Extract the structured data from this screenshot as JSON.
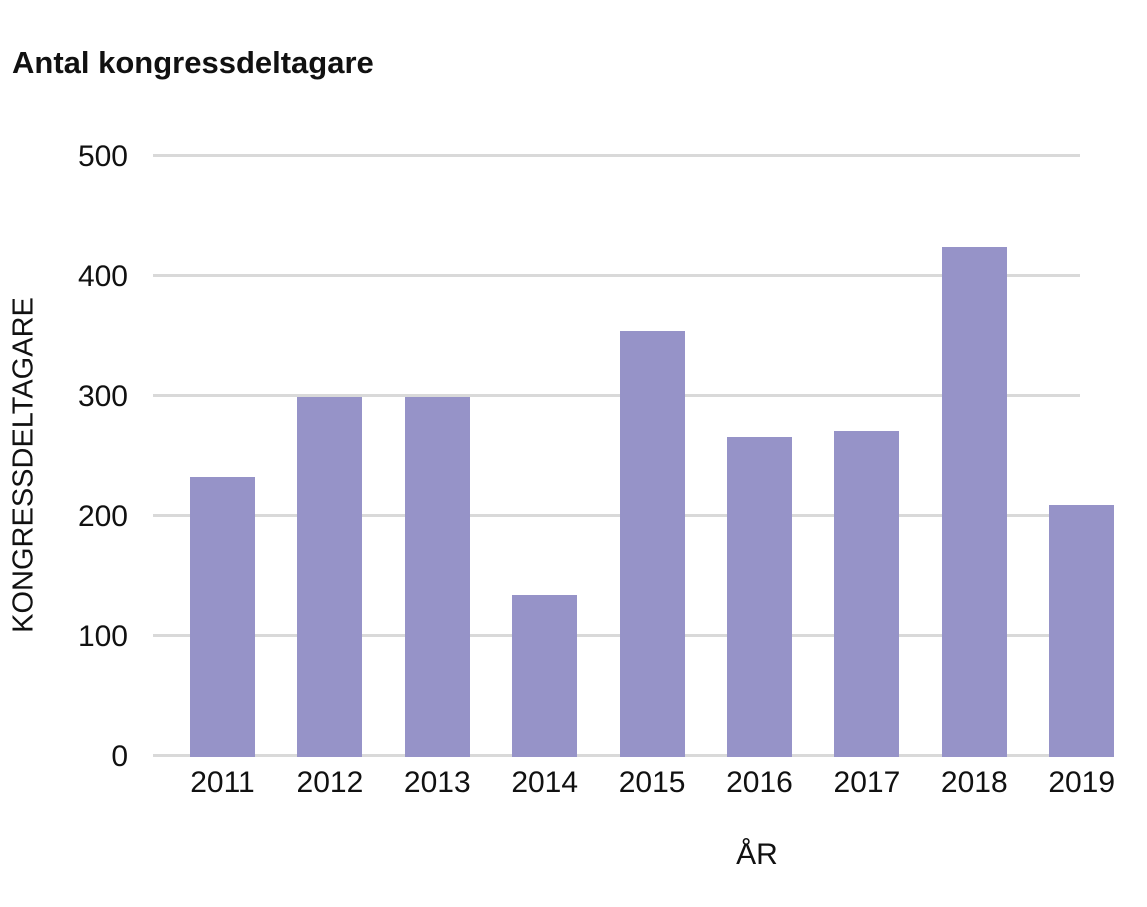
{
  "page": {
    "title": "Antal kongressdeltagare"
  },
  "chart_data": {
    "type": "bar",
    "title": "Antal kongressdeltagare",
    "xlabel": "ÅR",
    "ylabel": "KONGRESSDELTAGARE",
    "categories": [
      "2011",
      "2012",
      "2013",
      "2014",
      "2015",
      "2016",
      "2017",
      "2018",
      "2019"
    ],
    "values": [
      233,
      300,
      300,
      135,
      355,
      267,
      272,
      425,
      210
    ],
    "yticks": [
      0,
      100,
      200,
      300,
      400,
      500
    ],
    "ylim": [
      0,
      500
    ],
    "grid": "horizontal",
    "legend": "none",
    "last_bar_clipped_at_right_edge": true,
    "colors": {
      "bar": "#9693C8",
      "gridline": "#D9D9D9",
      "text": "#111111",
      "background": "#FFFFFF"
    }
  }
}
